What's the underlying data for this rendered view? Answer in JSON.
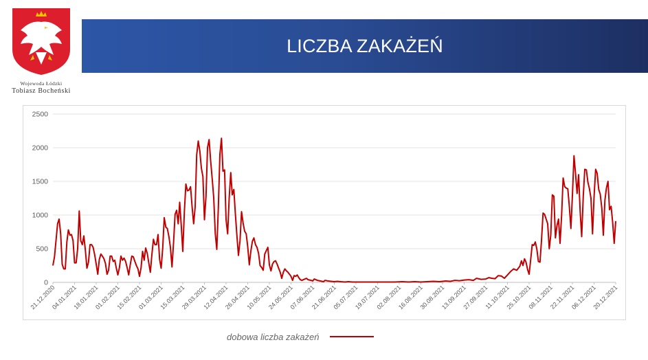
{
  "header": {
    "title": "LICZBA ZAKAŻEŃ",
    "caption_line1": "Wojewoda Łódzki",
    "caption_line2": "Tobiasz Bocheński"
  },
  "colors": {
    "banner_start": "#2c56a6",
    "banner_end": "#1d2f62",
    "series": "#c00000",
    "emblem_shield": "#dc1e2d"
  },
  "chart_data": {
    "type": "line",
    "title": "",
    "xlabel": "",
    "ylabel": "",
    "ylim": [
      0,
      2500
    ],
    "yticks": [
      0,
      500,
      1000,
      1500,
      2000,
      2500
    ],
    "xlim": [
      "2020-12-21",
      "2021-12-20"
    ],
    "grid": "horizontal",
    "legend": "bottom",
    "x_tick_labels": [
      "21.12.2020",
      "04.01.2021",
      "18.01.2021",
      "01.02.2021",
      "15.02.2021",
      "01.03.2021",
      "15.03.2021",
      "29.03.2021",
      "12.04.2021",
      "26.04.2021",
      "10.05.2021",
      "24.05.2021",
      "07.06.2021",
      "21.06.2021",
      "05.07.2021",
      "19.07.2021",
      "02.08.2021",
      "16.08.2021",
      "30.08.2021",
      "13.09.2021",
      "27.09.2021",
      "11.10.2021",
      "25.10.2021",
      "08.11.2021",
      "22.11.2021",
      "06.12.2021",
      "20.12.2021"
    ],
    "series": [
      {
        "name": "dobowa liczba zakażeń",
        "points": [
          [
            "2020-12-21",
            250
          ],
          [
            "2020-12-22",
            380
          ],
          [
            "2020-12-24",
            870
          ],
          [
            "2020-12-25",
            940
          ],
          [
            "2020-12-26",
            720
          ],
          [
            "2020-12-27",
            270
          ],
          [
            "2020-12-28",
            200
          ],
          [
            "2020-12-29",
            200
          ],
          [
            "2020-12-30",
            600
          ],
          [
            "2020-12-31",
            780
          ],
          [
            "2021-01-01",
            700
          ],
          [
            "2021-01-02",
            710
          ],
          [
            "2021-01-03",
            620
          ],
          [
            "2021-01-04",
            290
          ],
          [
            "2021-01-05",
            290
          ],
          [
            "2021-01-06",
            500
          ],
          [
            "2021-01-07",
            1060
          ],
          [
            "2021-01-08",
            620
          ],
          [
            "2021-01-09",
            560
          ],
          [
            "2021-01-10",
            690
          ],
          [
            "2021-01-11",
            470
          ],
          [
            "2021-01-12",
            210
          ],
          [
            "2021-01-13",
            300
          ],
          [
            "2021-01-14",
            560
          ],
          [
            "2021-01-15",
            560
          ],
          [
            "2021-01-16",
            520
          ],
          [
            "2021-01-17",
            410
          ],
          [
            "2021-01-18",
            270
          ],
          [
            "2021-01-19",
            120
          ],
          [
            "2021-01-20",
            340
          ],
          [
            "2021-01-21",
            420
          ],
          [
            "2021-01-22",
            390
          ],
          [
            "2021-01-23",
            350
          ],
          [
            "2021-01-24",
            280
          ],
          [
            "2021-01-25",
            120
          ],
          [
            "2021-01-26",
            180
          ],
          [
            "2021-01-27",
            390
          ],
          [
            "2021-01-28",
            390
          ],
          [
            "2021-01-29",
            310
          ],
          [
            "2021-01-30",
            330
          ],
          [
            "2021-01-31",
            210
          ],
          [
            "2021-02-01",
            110
          ],
          [
            "2021-02-02",
            220
          ],
          [
            "2021-02-03",
            390
          ],
          [
            "2021-02-04",
            330
          ],
          [
            "2021-02-05",
            360
          ],
          [
            "2021-02-06",
            310
          ],
          [
            "2021-02-07",
            220
          ],
          [
            "2021-02-08",
            110
          ],
          [
            "2021-02-09",
            260
          ],
          [
            "2021-02-10",
            390
          ],
          [
            "2021-02-11",
            380
          ],
          [
            "2021-02-12",
            310
          ],
          [
            "2021-02-13",
            250
          ],
          [
            "2021-02-14",
            200
          ],
          [
            "2021-02-15",
            90
          ],
          [
            "2021-02-16",
            220
          ],
          [
            "2021-02-17",
            460
          ],
          [
            "2021-02-18",
            330
          ],
          [
            "2021-02-19",
            510
          ],
          [
            "2021-02-20",
            430
          ],
          [
            "2021-02-21",
            290
          ],
          [
            "2021-02-22",
            150
          ],
          [
            "2021-02-23",
            410
          ],
          [
            "2021-02-24",
            640
          ],
          [
            "2021-02-25",
            560
          ],
          [
            "2021-02-26",
            560
          ],
          [
            "2021-02-27",
            710
          ],
          [
            "2021-02-28",
            340
          ],
          [
            "2021-03-01",
            210
          ],
          [
            "2021-03-02",
            510
          ],
          [
            "2021-03-03",
            960
          ],
          [
            "2021-03-04",
            820
          ],
          [
            "2021-03-05",
            800
          ],
          [
            "2021-03-06",
            680
          ],
          [
            "2021-03-07",
            520
          ],
          [
            "2021-03-08",
            230
          ],
          [
            "2021-03-09",
            580
          ],
          [
            "2021-03-10",
            1010
          ],
          [
            "2021-03-11",
            1070
          ],
          [
            "2021-03-12",
            870
          ],
          [
            "2021-03-13",
            1190
          ],
          [
            "2021-03-14",
            840
          ],
          [
            "2021-03-15",
            460
          ],
          [
            "2021-03-16",
            1050
          ],
          [
            "2021-03-17",
            1460
          ],
          [
            "2021-03-18",
            1360
          ],
          [
            "2021-03-19",
            1370
          ],
          [
            "2021-03-20",
            1420
          ],
          [
            "2021-03-21",
            1130
          ],
          [
            "2021-03-22",
            870
          ],
          [
            "2021-03-23",
            1120
          ],
          [
            "2021-03-24",
            1890
          ],
          [
            "2021-03-25",
            2100
          ],
          [
            "2021-03-26",
            1950
          ],
          [
            "2021-03-27",
            1700
          ],
          [
            "2021-03-28",
            1570
          ],
          [
            "2021-03-29",
            930
          ],
          [
            "2021-03-30",
            1280
          ],
          [
            "2021-03-31",
            2000
          ],
          [
            "2021-04-01",
            2120
          ],
          [
            "2021-04-02",
            1810
          ],
          [
            "2021-04-03",
            1540
          ],
          [
            "2021-04-04",
            1260
          ],
          [
            "2021-04-05",
            720
          ],
          [
            "2021-04-06",
            490
          ],
          [
            "2021-04-07",
            1130
          ],
          [
            "2021-04-08",
            1900
          ],
          [
            "2021-04-09",
            2140
          ],
          [
            "2021-04-10",
            1650
          ],
          [
            "2021-04-11",
            1670
          ],
          [
            "2021-04-12",
            930
          ],
          [
            "2021-04-13",
            720
          ],
          [
            "2021-04-14",
            1250
          ],
          [
            "2021-04-15",
            1630
          ],
          [
            "2021-04-16",
            1300
          ],
          [
            "2021-04-17",
            1380
          ],
          [
            "2021-04-18",
            1020
          ],
          [
            "2021-04-19",
            690
          ],
          [
            "2021-04-20",
            400
          ],
          [
            "2021-04-21",
            620
          ],
          [
            "2021-04-22",
            1050
          ],
          [
            "2021-04-23",
            880
          ],
          [
            "2021-04-24",
            760
          ],
          [
            "2021-04-25",
            720
          ],
          [
            "2021-04-26",
            530
          ],
          [
            "2021-04-27",
            260
          ],
          [
            "2021-04-28",
            460
          ],
          [
            "2021-04-29",
            610
          ],
          [
            "2021-04-30",
            660
          ],
          [
            "2021-05-01",
            560
          ],
          [
            "2021-05-02",
            520
          ],
          [
            "2021-05-03",
            430
          ],
          [
            "2021-05-04",
            250
          ],
          [
            "2021-05-05",
            220
          ],
          [
            "2021-05-06",
            180
          ],
          [
            "2021-05-07",
            420
          ],
          [
            "2021-05-08",
            470
          ],
          [
            "2021-05-09",
            520
          ],
          [
            "2021-05-10",
            260
          ],
          [
            "2021-05-11",
            170
          ],
          [
            "2021-05-12",
            270
          ],
          [
            "2021-05-13",
            310
          ],
          [
            "2021-05-14",
            320
          ],
          [
            "2021-05-15",
            270
          ],
          [
            "2021-05-16",
            210
          ],
          [
            "2021-05-17",
            150
          ],
          [
            "2021-05-18",
            60
          ],
          [
            "2021-05-19",
            150
          ],
          [
            "2021-05-20",
            200
          ],
          [
            "2021-05-21",
            170
          ],
          [
            "2021-05-22",
            150
          ],
          [
            "2021-05-23",
            120
          ],
          [
            "2021-05-24",
            90
          ],
          [
            "2021-05-25",
            30
          ],
          [
            "2021-05-26",
            100
          ],
          [
            "2021-05-27",
            90
          ],
          [
            "2021-05-28",
            110
          ],
          [
            "2021-05-29",
            70
          ],
          [
            "2021-05-30",
            40
          ],
          [
            "2021-05-31",
            30
          ],
          [
            "2021-06-02",
            50
          ],
          [
            "2021-06-03",
            60
          ],
          [
            "2021-06-04",
            40
          ],
          [
            "2021-06-06",
            30
          ],
          [
            "2021-06-07",
            20
          ],
          [
            "2021-06-08",
            50
          ],
          [
            "2021-06-10",
            30
          ],
          [
            "2021-06-12",
            20
          ],
          [
            "2021-06-14",
            10
          ],
          [
            "2021-06-15",
            30
          ],
          [
            "2021-06-17",
            20
          ],
          [
            "2021-06-19",
            15
          ],
          [
            "2021-06-21",
            10
          ],
          [
            "2021-06-23",
            15
          ],
          [
            "2021-06-25",
            10
          ],
          [
            "2021-06-28",
            5
          ],
          [
            "2021-06-30",
            10
          ],
          [
            "2021-07-03",
            5
          ],
          [
            "2021-07-06",
            5
          ],
          [
            "2021-07-10",
            5
          ],
          [
            "2021-07-15",
            5
          ],
          [
            "2021-07-20",
            5
          ],
          [
            "2021-07-25",
            5
          ],
          [
            "2021-07-30",
            5
          ],
          [
            "2021-08-04",
            10
          ],
          [
            "2021-08-08",
            5
          ],
          [
            "2021-08-12",
            10
          ],
          [
            "2021-08-16",
            5
          ],
          [
            "2021-08-20",
            10
          ],
          [
            "2021-08-24",
            15
          ],
          [
            "2021-08-28",
            10
          ],
          [
            "2021-09-01",
            20
          ],
          [
            "2021-09-04",
            15
          ],
          [
            "2021-09-07",
            30
          ],
          [
            "2021-09-10",
            25
          ],
          [
            "2021-09-13",
            35
          ],
          [
            "2021-09-16",
            40
          ],
          [
            "2021-09-19",
            30
          ],
          [
            "2021-09-21",
            60
          ],
          [
            "2021-09-24",
            45
          ],
          [
            "2021-09-27",
            50
          ],
          [
            "2021-09-29",
            70
          ],
          [
            "2021-10-01",
            60
          ],
          [
            "2021-10-03",
            55
          ],
          [
            "2021-10-05",
            100
          ],
          [
            "2021-10-07",
            95
          ],
          [
            "2021-10-09",
            60
          ],
          [
            "2021-10-11",
            110
          ],
          [
            "2021-10-13",
            160
          ],
          [
            "2021-10-15",
            200
          ],
          [
            "2021-10-17",
            180
          ],
          [
            "2021-10-19",
            240
          ],
          [
            "2021-10-20",
            320
          ],
          [
            "2021-10-21",
            250
          ],
          [
            "2021-10-22",
            350
          ],
          [
            "2021-10-23",
            300
          ],
          [
            "2021-10-24",
            190
          ],
          [
            "2021-10-25",
            120
          ],
          [
            "2021-10-26",
            340
          ],
          [
            "2021-10-27",
            560
          ],
          [
            "2021-10-28",
            550
          ],
          [
            "2021-10-29",
            600
          ],
          [
            "2021-10-30",
            490
          ],
          [
            "2021-10-31",
            310
          ],
          [
            "2021-11-01",
            300
          ],
          [
            "2021-11-02",
            620
          ],
          [
            "2021-11-03",
            1030
          ],
          [
            "2021-11-04",
            1010
          ],
          [
            "2021-11-05",
            940
          ],
          [
            "2021-11-06",
            870
          ],
          [
            "2021-11-07",
            500
          ],
          [
            "2021-11-08",
            700
          ],
          [
            "2021-11-09",
            1300
          ],
          [
            "2021-11-10",
            1280
          ],
          [
            "2021-11-11",
            660
          ],
          [
            "2021-11-12",
            840
          ],
          [
            "2021-11-13",
            940
          ],
          [
            "2021-11-14",
            580
          ],
          [
            "2021-11-15",
            1000
          ],
          [
            "2021-11-16",
            1550
          ],
          [
            "2021-11-17",
            1420
          ],
          [
            "2021-11-18",
            1400
          ],
          [
            "2021-11-19",
            1390
          ],
          [
            "2021-11-20",
            1130
          ],
          [
            "2021-11-21",
            800
          ],
          [
            "2021-11-22",
            1290
          ],
          [
            "2021-11-23",
            1880
          ],
          [
            "2021-11-24",
            1620
          ],
          [
            "2021-11-25",
            1320
          ],
          [
            "2021-11-26",
            1600
          ],
          [
            "2021-11-27",
            1050
          ],
          [
            "2021-11-28",
            680
          ],
          [
            "2021-11-29",
            1280
          ],
          [
            "2021-11-30",
            1680
          ],
          [
            "2021-12-01",
            1670
          ],
          [
            "2021-12-02",
            1490
          ],
          [
            "2021-12-03",
            1390
          ],
          [
            "2021-12-04",
            1250
          ],
          [
            "2021-12-05",
            720
          ],
          [
            "2021-12-06",
            1270
          ],
          [
            "2021-12-07",
            1680
          ],
          [
            "2021-12-08",
            1620
          ],
          [
            "2021-12-09",
            1380
          ],
          [
            "2021-12-10",
            1310
          ],
          [
            "2021-12-11",
            1100
          ],
          [
            "2021-12-12",
            700
          ],
          [
            "2021-12-13",
            1220
          ],
          [
            "2021-12-14",
            1400
          ],
          [
            "2021-12-15",
            1500
          ],
          [
            "2021-12-16",
            1080
          ],
          [
            "2021-12-17",
            1130
          ],
          [
            "2021-12-18",
            900
          ],
          [
            "2021-12-19",
            580
          ],
          [
            "2021-12-20",
            910
          ]
        ]
      }
    ]
  }
}
